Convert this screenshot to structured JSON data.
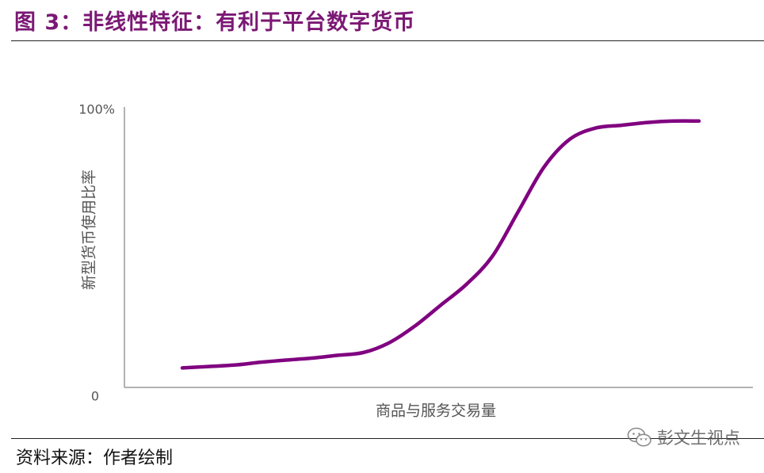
{
  "figure": {
    "title": "图 3：非线性特征：有利于平台数字货币",
    "source": "资料来源：作者绘制",
    "watermark": "彭文生视点",
    "title_color": "#7b1874"
  },
  "chart_data": {
    "type": "line",
    "title": "",
    "xlabel": "商品与服务交易量",
    "ylabel": "新型货币使用比率",
    "ytick_labels": [
      "0",
      "100%"
    ],
    "ylim": [
      0,
      100
    ],
    "xlim": [
      0,
      100
    ],
    "grid": false,
    "series": [
      {
        "color": "#800080",
        "x": [
          0,
          5,
          10,
          15,
          20,
          25,
          30,
          35,
          40,
          45,
          50,
          55,
          60,
          65,
          70,
          75,
          80,
          85,
          90,
          95,
          100
        ],
        "y": [
          7,
          7.5,
          8,
          9,
          9.8,
          10.5,
          11.5,
          12.5,
          16,
          22,
          29.5,
          37,
          47,
          63,
          79,
          89,
          93,
          94,
          95,
          95.5,
          95.5
        ]
      }
    ]
  }
}
